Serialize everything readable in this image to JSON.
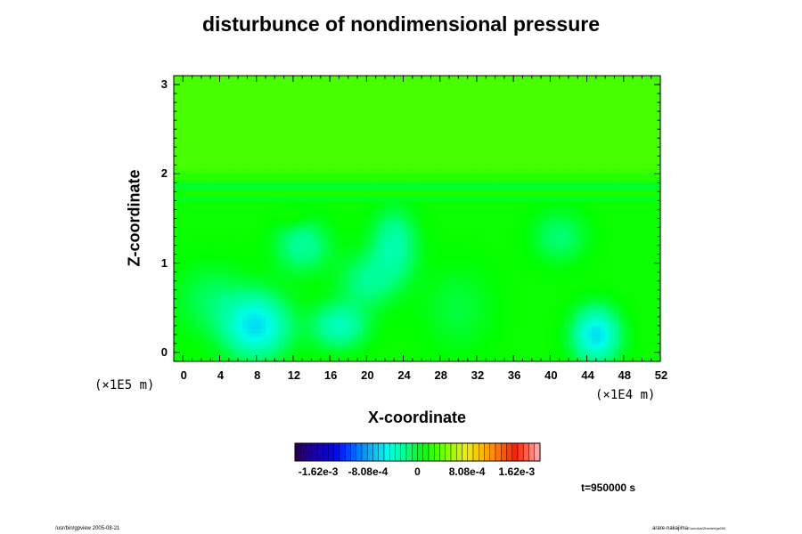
{
  "chart_data": {
    "type": "heatmap",
    "title": "disturbunce of nondimensional pressure",
    "xlabel": "X-coordinate",
    "ylabel": "Z-coordinate",
    "x_scale_label": "(×1E4 m)",
    "y_scale_label": "(×1E5 m)",
    "xlim": [
      -1,
      52
    ],
    "ylim": [
      -0.1,
      3.1
    ],
    "x_ticks": [
      "0",
      "4",
      "8",
      "12",
      "16",
      "20",
      "24",
      "28",
      "32",
      "36",
      "40",
      "44",
      "48",
      "52"
    ],
    "y_ticks": [
      "0",
      "1",
      "2",
      "3"
    ],
    "colorbar": {
      "tick_labels": [
        "-1.62e-3",
        "-8.08e-4",
        "0",
        "8.08e-4",
        "1.62e-3"
      ],
      "min": -0.002,
      "max": 0.002
    },
    "background_value": 0.00012,
    "upper_value": 0.0003,
    "bands": [
      {
        "z0": 1.7,
        "z1": 1.9,
        "value": 0.0
      },
      {
        "z0": 1.75,
        "z1": 1.8,
        "value": 0.00014
      }
    ],
    "blobs": [
      {
        "x": 8,
        "z": 0.3,
        "rx": 3.5,
        "rz": 0.35,
        "value": -0.0007
      },
      {
        "x": 45,
        "z": 0.2,
        "rx": 2.5,
        "rz": 0.3,
        "value": -0.00072
      },
      {
        "x": 17,
        "z": 0.3,
        "rx": 3,
        "rz": 0.25,
        "value": -0.00045
      },
      {
        "x": 13,
        "z": 1.2,
        "rx": 3,
        "rz": 0.3,
        "value": -0.00035
      },
      {
        "x": 23,
        "z": 1.2,
        "rx": 2.5,
        "rz": 0.4,
        "value": -0.0004
      },
      {
        "x": 20,
        "z": 0.8,
        "rx": 3,
        "rz": 0.3,
        "value": -0.0003
      },
      {
        "x": 41,
        "z": 1.3,
        "rx": 3,
        "rz": 0.3,
        "value": -0.00025
      },
      {
        "x": 3,
        "z": 0.6,
        "rx": 4,
        "rz": 0.4,
        "value": -0.0002
      },
      {
        "x": 30,
        "z": 0.5,
        "rx": 4,
        "rz": 0.5,
        "value": -0.00015
      },
      {
        "x": 12,
        "z": 1.5,
        "rx": 1.5,
        "rz": 0.1,
        "value": 0.0001
      }
    ]
  },
  "time_label": "t=950000 s",
  "footer_left": "/usr/bin/gpview 2005-08-21",
  "footer_right": "arare-nakajima",
  "footer_right_small": "Cumulus/Zbsmet/gs000"
}
